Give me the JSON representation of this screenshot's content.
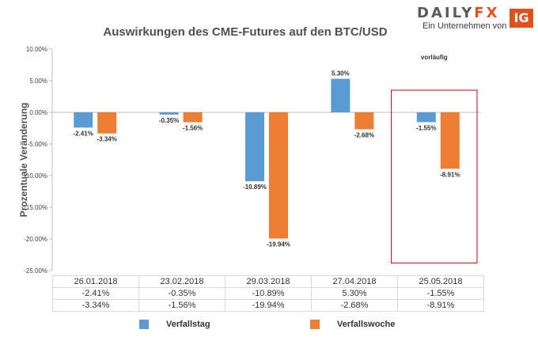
{
  "logo": {
    "word_a": "DAILY",
    "word_b": "FX",
    "badge": "IG",
    "subtitle": "Ein Unternehmen von"
  },
  "colors": {
    "series1": "#5b9bd5",
    "series2": "#ed7d31",
    "highlight": "#c00000",
    "axis": "#bfbfbf",
    "grid": "#d9d9d9"
  },
  "chart_data": {
    "type": "bar",
    "title": "Auswirkungen des CME-Futures auf den BTC/USD",
    "ylabel": "Prozentuale Veränderung",
    "xlabel": "",
    "ylim": [
      -25,
      10
    ],
    "yticks": [
      10,
      5,
      0,
      -5,
      -10,
      -15,
      -20,
      -25
    ],
    "ytick_labels": [
      "10.00%",
      "5.00%",
      "0.00%",
      "-5.00%",
      "-10.00%",
      "-15.00%",
      "-20.00%",
      "-25.00%"
    ],
    "categories": [
      "26.01.2018",
      "23.02.2018",
      "29.03.2018",
      "27.04.2018",
      "25.05.2018"
    ],
    "series": [
      {
        "name": "Verfallstag",
        "values": [
          -2.41,
          -0.35,
          -10.89,
          5.3,
          -1.55
        ],
        "labels": [
          "-2.41%",
          "-0.35%",
          "-10.89%",
          "5.30%",
          "-1.55%"
        ]
      },
      {
        "name": "Verfallswoche",
        "values": [
          -3.34,
          -1.56,
          -19.94,
          -2.68,
          -8.91
        ],
        "labels": [
          "-3.34%",
          "-1.56%",
          "-19.94%",
          "-2.68%",
          "-8.91%"
        ]
      }
    ],
    "annotation": {
      "category_index": 4,
      "text": "vorläufig"
    },
    "legend_position": "bottom",
    "data_table": true
  }
}
